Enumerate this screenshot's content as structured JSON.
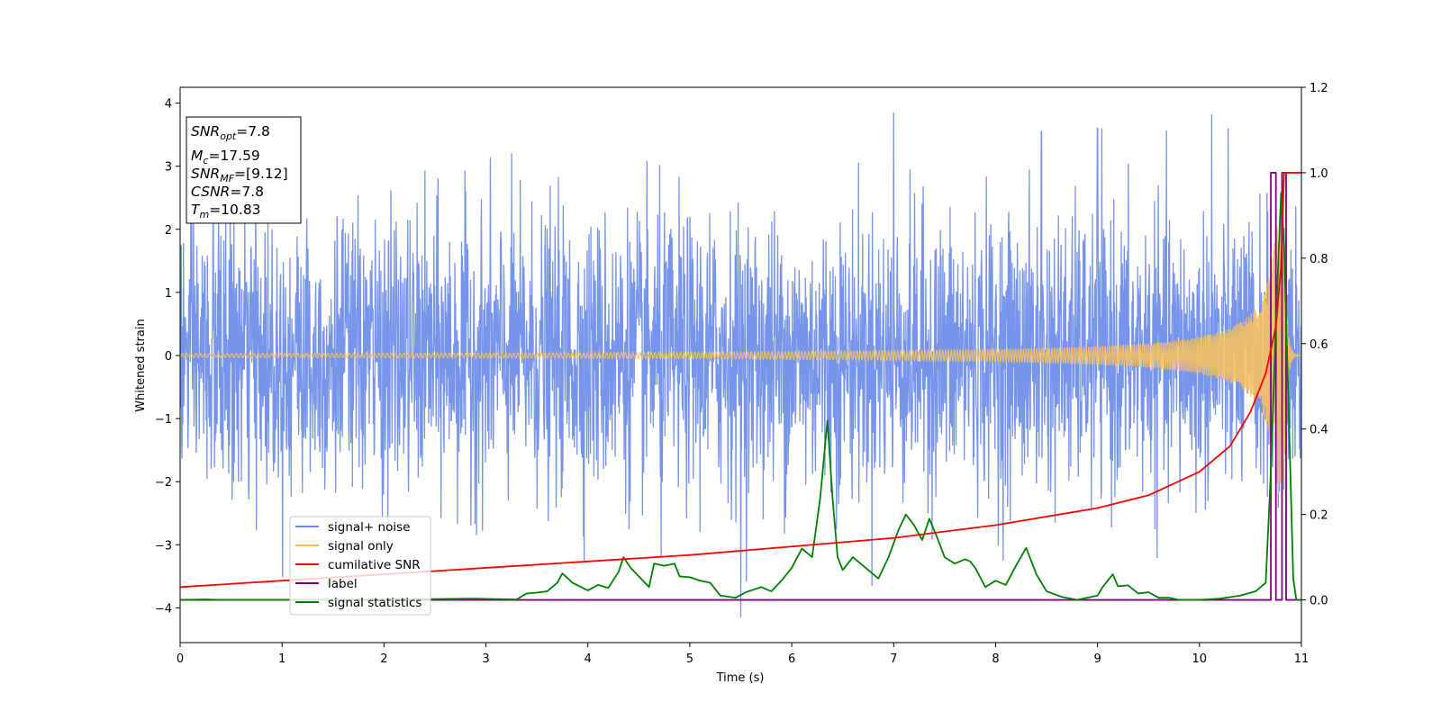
{
  "chart_data": {
    "type": "line",
    "title": "",
    "xlabel": "Time (s)",
    "ylabel": "Whitened strain",
    "xlim": [
      0,
      11
    ],
    "ylim": [
      -4.55,
      4.25
    ],
    "y2lim": [
      -0.1,
      1.2
    ],
    "xticks": [
      "0",
      "1",
      "2",
      "3",
      "4",
      "5",
      "6",
      "7",
      "8",
      "9",
      "10",
      "11"
    ],
    "yticks": [
      "4",
      "3",
      "2",
      "1",
      "0",
      "−1",
      "−2",
      "−3",
      "−4"
    ],
    "y2ticks": [
      "1.2",
      "1.0",
      "0.8",
      "0.6",
      "0.4",
      "0.2",
      "0.0"
    ],
    "grid": false,
    "legend_position": "lower-left",
    "info_box": {
      "snr_opt": {
        "var": "SNR",
        "sub": "opt",
        "val": "=7.8"
      },
      "mc": {
        "var": "M",
        "sub": "c",
        "val": "=17.59"
      },
      "snr_mf": {
        "var": "SNR",
        "sub": "MF",
        "val": "=[9.12]"
      },
      "csnr": {
        "var": "CSNR",
        "sub": "",
        "val": "=7.8"
      },
      "tm": {
        "var": "T",
        "sub": "m",
        "val": "=10.83"
      }
    },
    "series": [
      {
        "name": "signal+ noise",
        "axis": "left",
        "color": "#6f8ee8",
        "noise_sigma": 1.0,
        "peaks": [
          [
            6.35,
            -1.1
          ],
          [
            5.5,
            -4.15
          ],
          [
            7.0,
            3.85
          ],
          [
            10.12,
            3.82
          ],
          [
            4.72,
            -3.2
          ],
          [
            8.45,
            3.55
          ],
          [
            9.0,
            3.6
          ]
        ]
      },
      {
        "name": "signal only",
        "axis": "left",
        "color": "#f5c061",
        "chirp_amplitude_start": 0.03,
        "chirp_amplitude_end": 2.2,
        "merger_time": 10.83
      },
      {
        "name": "cumilative SNR",
        "axis": "right",
        "color": "#ff0000",
        "x": [
          0,
          1,
          2,
          3,
          4,
          5,
          6,
          7,
          8,
          9,
          9.5,
          10,
          10.3,
          10.5,
          10.65,
          10.75,
          10.8,
          10.83,
          10.85,
          11
        ],
        "y": [
          0.03,
          0.045,
          0.06,
          0.075,
          0.09,
          0.105,
          0.125,
          0.145,
          0.175,
          0.215,
          0.245,
          0.3,
          0.36,
          0.44,
          0.53,
          0.64,
          0.78,
          1.0,
          1.0,
          1.0
        ]
      },
      {
        "name": "label",
        "axis": "right",
        "color": "#800080",
        "x": [
          0,
          10.7,
          10.7,
          10.75,
          10.75,
          10.81,
          10.81,
          10.85,
          10.85,
          11
        ],
        "y": [
          0.0,
          0.0,
          1.0,
          1.0,
          0.0,
          0.0,
          1.0,
          1.0,
          0.0,
          0.0
        ]
      },
      {
        "name": "signal statistics",
        "axis": "right",
        "color": "#008000",
        "x": [
          0,
          0.25,
          0.4,
          0.6,
          1.0,
          1.5,
          2.0,
          2.5,
          2.9,
          3.1,
          3.3,
          3.4,
          3.5,
          3.6,
          3.7,
          3.75,
          3.85,
          4.0,
          4.1,
          4.2,
          4.3,
          4.35,
          4.42,
          4.5,
          4.6,
          4.65,
          4.75,
          4.85,
          4.9,
          5.0,
          5.1,
          5.2,
          5.3,
          5.45,
          5.55,
          5.7,
          5.8,
          5.9,
          6.0,
          6.1,
          6.2,
          6.28,
          6.35,
          6.4,
          6.45,
          6.5,
          6.6,
          6.7,
          6.85,
          6.95,
          7.05,
          7.12,
          7.2,
          7.28,
          7.35,
          7.42,
          7.5,
          7.6,
          7.7,
          7.75,
          7.8,
          7.9,
          8.0,
          8.1,
          8.2,
          8.3,
          8.4,
          8.5,
          8.65,
          8.8,
          9.0,
          9.05,
          9.15,
          9.2,
          9.3,
          9.4,
          9.5,
          9.6,
          9.7,
          9.8,
          10.0,
          10.2,
          10.4,
          10.55,
          10.65,
          10.7,
          10.75,
          10.8,
          10.83,
          10.88,
          10.92,
          10.95,
          11.0
        ],
        "y": [
          0.0,
          0.001,
          0.0,
          0.0,
          0.0,
          0.0,
          0.001,
          0.002,
          0.003,
          0.002,
          0.001,
          0.015,
          0.017,
          0.02,
          0.04,
          0.062,
          0.04,
          0.022,
          0.035,
          0.028,
          0.065,
          0.1,
          0.075,
          0.055,
          0.03,
          0.085,
          0.08,
          0.085,
          0.055,
          0.053,
          0.045,
          0.04,
          0.01,
          0.005,
          0.018,
          0.03,
          0.02,
          0.045,
          0.075,
          0.12,
          0.1,
          0.24,
          0.42,
          0.24,
          0.1,
          0.07,
          0.1,
          0.08,
          0.05,
          0.1,
          0.165,
          0.2,
          0.175,
          0.14,
          0.19,
          0.15,
          0.1,
          0.085,
          0.095,
          0.09,
          0.075,
          0.03,
          0.045,
          0.035,
          0.08,
          0.122,
          0.06,
          0.02,
          0.007,
          0.0,
          0.01,
          0.03,
          0.06,
          0.032,
          0.034,
          0.015,
          0.018,
          0.005,
          0.005,
          0.0,
          0.0,
          0.003,
          0.01,
          0.02,
          0.04,
          0.3,
          0.65,
          0.95,
          0.83,
          0.4,
          0.05,
          0.0,
          0.0
        ]
      }
    ]
  }
}
